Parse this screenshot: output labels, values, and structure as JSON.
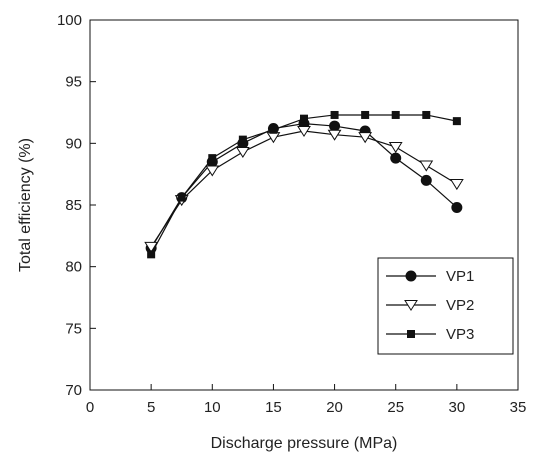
{
  "chart_data": {
    "type": "line",
    "xlabel": "Discharge pressure (MPa)",
    "ylabel": "Total efficiency (%)",
    "xlim": [
      0,
      35
    ],
    "ylim": [
      70,
      100
    ],
    "xticks": [
      0,
      5,
      10,
      15,
      20,
      25,
      30,
      35
    ],
    "yticks": [
      70,
      75,
      80,
      85,
      90,
      95,
      100
    ],
    "grid": false,
    "legend_position": "lower-right",
    "x": [
      5,
      7.5,
      10,
      12.5,
      15,
      17.5,
      20,
      22.5,
      25,
      27.5,
      30
    ],
    "series": [
      {
        "name": "VP1",
        "marker": "filled-circle",
        "color": "#111111",
        "values": [
          81.5,
          85.6,
          88.5,
          90.0,
          91.2,
          91.6,
          91.4,
          91.0,
          88.8,
          87.0,
          84.8
        ]
      },
      {
        "name": "VP2",
        "marker": "open-triangle-down",
        "color": "#111111",
        "values": [
          81.6,
          85.4,
          87.8,
          89.3,
          90.5,
          91.0,
          90.7,
          90.5,
          89.7,
          88.2,
          86.7
        ]
      },
      {
        "name": "VP3",
        "marker": "filled-square",
        "color": "#111111",
        "values": [
          81.0,
          85.6,
          88.8,
          90.3,
          91.1,
          92.0,
          92.3,
          92.3,
          92.3,
          92.3,
          91.8
        ]
      }
    ]
  }
}
